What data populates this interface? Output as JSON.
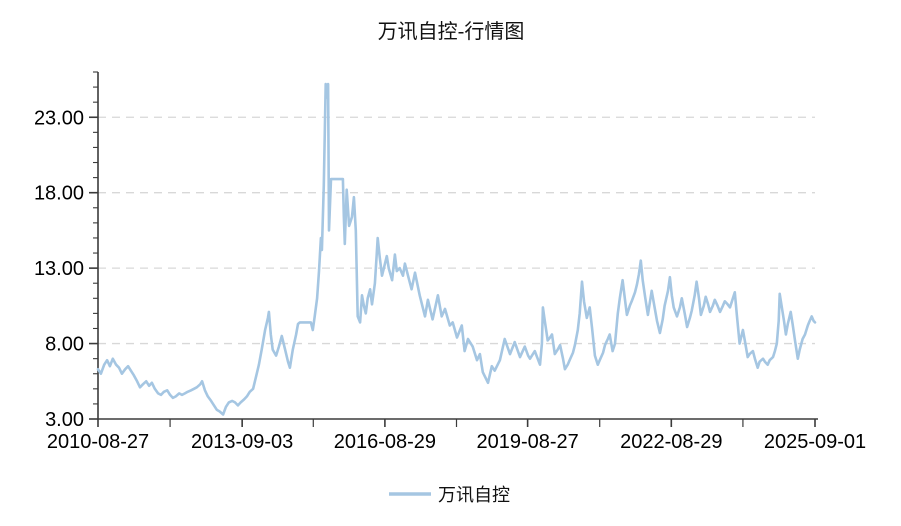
{
  "title": "万讯自控-行情图",
  "legend": {
    "label": "万讯自控"
  },
  "colors": {
    "series_line": "#A5C6E2",
    "axis": "#3b3b3b",
    "gridline": "#d8d8d8",
    "text": "#000000",
    "background": "#ffffff"
  },
  "chart_data": {
    "type": "line",
    "title": "万讯自控-行情图",
    "series_name": "万讯自控",
    "x_unit": "decimal_year",
    "xlim": [
      2010.65,
      2025.67
    ],
    "ylim": [
      3,
      26
    ],
    "grid": "dashed horizontal at y major ticks",
    "legend_position": "bottom-center",
    "y_ticks": [
      {
        "value": 3,
        "label": "3.00"
      },
      {
        "value": 8,
        "label": "8.00"
      },
      {
        "value": 13,
        "label": "13.00"
      },
      {
        "value": 18,
        "label": "18.00"
      },
      {
        "value": 23,
        "label": "23.00"
      }
    ],
    "y_minor_tick_step": 1,
    "gridline_values": [
      8,
      13,
      18,
      23
    ],
    "x_ticks": [
      {
        "year": 2010.65,
        "label": "2010-08-27"
      },
      {
        "year": 2013.67,
        "label": "2013-09-03"
      },
      {
        "year": 2016.66,
        "label": "2016-08-29"
      },
      {
        "year": 2019.65,
        "label": "2019-08-27"
      },
      {
        "year": 2022.66,
        "label": "2022-08-29"
      },
      {
        "year": 2025.67,
        "label": "2025-09-01"
      }
    ],
    "x_minor_ticks": [
      2012.16,
      2015.16,
      2018.16,
      2021.16,
      2024.16
    ],
    "points": [
      [
        2010.65,
        6.3
      ],
      [
        2010.71,
        6.0
      ],
      [
        2010.78,
        6.6
      ],
      [
        2010.84,
        6.9
      ],
      [
        2010.9,
        6.5
      ],
      [
        2010.96,
        7.0
      ],
      [
        2011.03,
        6.6
      ],
      [
        2011.09,
        6.4
      ],
      [
        2011.15,
        6.0
      ],
      [
        2011.22,
        6.3
      ],
      [
        2011.28,
        6.5
      ],
      [
        2011.34,
        6.2
      ],
      [
        2011.4,
        5.9
      ],
      [
        2011.47,
        5.5
      ],
      [
        2011.53,
        5.1
      ],
      [
        2011.59,
        5.3
      ],
      [
        2011.66,
        5.5
      ],
      [
        2011.72,
        5.2
      ],
      [
        2011.78,
        5.4
      ],
      [
        2011.84,
        5.0
      ],
      [
        2011.91,
        4.7
      ],
      [
        2011.97,
        4.6
      ],
      [
        2012.03,
        4.8
      ],
      [
        2012.1,
        4.9
      ],
      [
        2012.16,
        4.6
      ],
      [
        2012.22,
        4.4
      ],
      [
        2012.28,
        4.5
      ],
      [
        2012.35,
        4.7
      ],
      [
        2012.41,
        4.6
      ],
      [
        2012.47,
        4.7
      ],
      [
        2012.53,
        4.8
      ],
      [
        2012.6,
        4.9
      ],
      [
        2012.66,
        5.0
      ],
      [
        2012.72,
        5.1
      ],
      [
        2012.79,
        5.3
      ],
      [
        2012.83,
        5.5
      ],
      [
        2012.89,
        4.9
      ],
      [
        2012.95,
        4.5
      ],
      [
        2013.02,
        4.2
      ],
      [
        2013.08,
        3.9
      ],
      [
        2013.14,
        3.6
      ],
      [
        2013.2,
        3.5
      ],
      [
        2013.27,
        3.3
      ],
      [
        2013.33,
        3.8
      ],
      [
        2013.39,
        4.1
      ],
      [
        2013.46,
        4.2
      ],
      [
        2013.52,
        4.1
      ],
      [
        2013.58,
        3.9
      ],
      [
        2013.64,
        4.1
      ],
      [
        2013.71,
        4.3
      ],
      [
        2013.77,
        4.5
      ],
      [
        2013.83,
        4.8
      ],
      [
        2013.9,
        5.0
      ],
      [
        2013.96,
        5.8
      ],
      [
        2014.02,
        6.6
      ],
      [
        2014.08,
        7.6
      ],
      [
        2014.15,
        8.9
      ],
      [
        2014.21,
        9.7
      ],
      [
        2014.23,
        10.1
      ],
      [
        2014.27,
        8.6
      ],
      [
        2014.31,
        7.6
      ],
      [
        2014.38,
        7.2
      ],
      [
        2014.44,
        7.8
      ],
      [
        2014.5,
        8.5
      ],
      [
        2014.57,
        7.6
      ],
      [
        2014.63,
        6.8
      ],
      [
        2014.67,
        6.4
      ],
      [
        2014.73,
        7.6
      ],
      [
        2014.8,
        8.6
      ],
      [
        2014.84,
        9.3
      ],
      [
        2014.88,
        9.4
      ],
      [
        2015.01,
        9.4
      ],
      [
        2015.11,
        9.4
      ],
      [
        2015.15,
        8.9
      ],
      [
        2015.19,
        9.8
      ],
      [
        2015.24,
        11.0
      ],
      [
        2015.28,
        12.8
      ],
      [
        2015.32,
        15.0
      ],
      [
        2015.34,
        14.2
      ],
      [
        2015.38,
        18.5
      ],
      [
        2015.42,
        25.2
      ],
      [
        2015.45,
        24.3
      ],
      [
        2015.47,
        25.2
      ],
      [
        2015.49,
        15.5
      ],
      [
        2015.53,
        18.9
      ],
      [
        2015.78,
        18.9
      ],
      [
        2015.8,
        16.5
      ],
      [
        2015.82,
        14.6
      ],
      [
        2015.86,
        18.2
      ],
      [
        2015.91,
        15.8
      ],
      [
        2015.97,
        16.4
      ],
      [
        2016.01,
        17.7
      ],
      [
        2016.05,
        15.5
      ],
      [
        2016.09,
        9.8
      ],
      [
        2016.14,
        9.4
      ],
      [
        2016.18,
        11.2
      ],
      [
        2016.22,
        10.5
      ],
      [
        2016.26,
        10.0
      ],
      [
        2016.3,
        11.0
      ],
      [
        2016.35,
        11.6
      ],
      [
        2016.39,
        10.6
      ],
      [
        2016.45,
        12.0
      ],
      [
        2016.49,
        14.0
      ],
      [
        2016.51,
        15.0
      ],
      [
        2016.55,
        13.8
      ],
      [
        2016.6,
        12.5
      ],
      [
        2016.64,
        13.0
      ],
      [
        2016.7,
        13.8
      ],
      [
        2016.74,
        13.0
      ],
      [
        2016.81,
        12.2
      ],
      [
        2016.87,
        13.9
      ],
      [
        2016.91,
        12.8
      ],
      [
        2016.97,
        13.0
      ],
      [
        2017.04,
        12.5
      ],
      [
        2017.08,
        13.3
      ],
      [
        2017.16,
        12.3
      ],
      [
        2017.22,
        11.6
      ],
      [
        2017.29,
        12.7
      ],
      [
        2017.39,
        11.2
      ],
      [
        2017.5,
        9.8
      ],
      [
        2017.56,
        10.9
      ],
      [
        2017.66,
        9.6
      ],
      [
        2017.77,
        11.2
      ],
      [
        2017.85,
        9.8
      ],
      [
        2017.92,
        10.3
      ],
      [
        2018.02,
        9.2
      ],
      [
        2018.08,
        9.4
      ],
      [
        2018.17,
        8.4
      ],
      [
        2018.27,
        9.2
      ],
      [
        2018.33,
        7.5
      ],
      [
        2018.4,
        8.3
      ],
      [
        2018.5,
        7.8
      ],
      [
        2018.59,
        6.9
      ],
      [
        2018.65,
        7.3
      ],
      [
        2018.71,
        6.1
      ],
      [
        2018.82,
        5.4
      ],
      [
        2018.9,
        6.5
      ],
      [
        2018.96,
        6.2
      ],
      [
        2019.07,
        6.9
      ],
      [
        2019.17,
        8.3
      ],
      [
        2019.28,
        7.3
      ],
      [
        2019.38,
        8.1
      ],
      [
        2019.49,
        7.1
      ],
      [
        2019.59,
        7.8
      ],
      [
        2019.66,
        7.2
      ],
      [
        2019.7,
        7.0
      ],
      [
        2019.76,
        7.3
      ],
      [
        2019.8,
        7.5
      ],
      [
        2019.86,
        7.0
      ],
      [
        2019.91,
        6.6
      ],
      [
        2019.95,
        8.0
      ],
      [
        2019.97,
        10.4
      ],
      [
        2020.01,
        9.5
      ],
      [
        2020.07,
        8.2
      ],
      [
        2020.12,
        8.4
      ],
      [
        2020.16,
        8.6
      ],
      [
        2020.22,
        7.3
      ],
      [
        2020.28,
        7.6
      ],
      [
        2020.33,
        7.9
      ],
      [
        2020.39,
        7.0
      ],
      [
        2020.43,
        6.3
      ],
      [
        2020.49,
        6.6
      ],
      [
        2020.53,
        6.9
      ],
      [
        2020.6,
        7.4
      ],
      [
        2020.64,
        7.9
      ],
      [
        2020.7,
        8.9
      ],
      [
        2020.74,
        10.0
      ],
      [
        2020.79,
        12.1
      ],
      [
        2020.83,
        10.8
      ],
      [
        2020.89,
        9.7
      ],
      [
        2020.95,
        10.4
      ],
      [
        2021.0,
        9.0
      ],
      [
        2021.06,
        7.2
      ],
      [
        2021.12,
        6.6
      ],
      [
        2021.16,
        6.9
      ],
      [
        2021.23,
        7.4
      ],
      [
        2021.27,
        7.9
      ],
      [
        2021.33,
        8.3
      ],
      [
        2021.37,
        8.6
      ],
      [
        2021.43,
        7.5
      ],
      [
        2021.48,
        8.0
      ],
      [
        2021.54,
        10.0
      ],
      [
        2021.58,
        11.0
      ],
      [
        2021.64,
        12.2
      ],
      [
        2021.69,
        10.9
      ],
      [
        2021.73,
        9.9
      ],
      [
        2021.79,
        10.5
      ],
      [
        2021.83,
        10.8
      ],
      [
        2021.9,
        11.4
      ],
      [
        2021.94,
        11.9
      ],
      [
        2021.98,
        12.6
      ],
      [
        2022.02,
        13.5
      ],
      [
        2022.06,
        12.2
      ],
      [
        2022.11,
        11.1
      ],
      [
        2022.17,
        9.9
      ],
      [
        2022.21,
        10.7
      ],
      [
        2022.25,
        11.5
      ],
      [
        2022.31,
        10.4
      ],
      [
        2022.36,
        9.5
      ],
      [
        2022.42,
        8.7
      ],
      [
        2022.48,
        9.6
      ],
      [
        2022.52,
        10.5
      ],
      [
        2022.59,
        11.5
      ],
      [
        2022.63,
        12.4
      ],
      [
        2022.67,
        11.2
      ],
      [
        2022.71,
        10.4
      ],
      [
        2022.78,
        9.8
      ],
      [
        2022.84,
        10.4
      ],
      [
        2022.88,
        11.0
      ],
      [
        2022.94,
        10.0
      ],
      [
        2022.99,
        9.1
      ],
      [
        2023.05,
        9.7
      ],
      [
        2023.09,
        10.2
      ],
      [
        2023.15,
        11.2
      ],
      [
        2023.19,
        12.1
      ],
      [
        2023.24,
        11.0
      ],
      [
        2023.28,
        9.9
      ],
      [
        2023.34,
        10.5
      ],
      [
        2023.38,
        11.1
      ],
      [
        2023.43,
        10.6
      ],
      [
        2023.47,
        10.1
      ],
      [
        2023.53,
        10.5
      ],
      [
        2023.57,
        10.9
      ],
      [
        2023.63,
        10.5
      ],
      [
        2023.68,
        10.1
      ],
      [
        2023.74,
        10.5
      ],
      [
        2023.78,
        10.8
      ],
      [
        2023.84,
        10.6
      ],
      [
        2023.89,
        10.4
      ],
      [
        2023.95,
        11.0
      ],
      [
        2023.99,
        11.4
      ],
      [
        2024.03,
        10.0
      ],
      [
        2024.09,
        8.0
      ],
      [
        2024.16,
        8.9
      ],
      [
        2024.2,
        8.2
      ],
      [
        2024.26,
        7.1
      ],
      [
        2024.3,
        7.3
      ],
      [
        2024.37,
        7.5
      ],
      [
        2024.41,
        7.0
      ],
      [
        2024.47,
        6.4
      ],
      [
        2024.51,
        6.8
      ],
      [
        2024.58,
        7.0
      ],
      [
        2024.62,
        6.8
      ],
      [
        2024.68,
        6.6
      ],
      [
        2024.72,
        6.9
      ],
      [
        2024.79,
        7.1
      ],
      [
        2024.83,
        7.5
      ],
      [
        2024.87,
        8.0
      ],
      [
        2024.91,
        9.5
      ],
      [
        2024.93,
        11.3
      ],
      [
        2024.97,
        10.5
      ],
      [
        2025.02,
        9.5
      ],
      [
        2025.06,
        8.6
      ],
      [
        2025.1,
        9.3
      ],
      [
        2025.16,
        10.1
      ],
      [
        2025.2,
        9.3
      ],
      [
        2025.25,
        8.2
      ],
      [
        2025.31,
        7.0
      ],
      [
        2025.35,
        7.6
      ],
      [
        2025.41,
        8.3
      ],
      [
        2025.46,
        8.6
      ],
      [
        2025.52,
        9.2
      ],
      [
        2025.56,
        9.5
      ],
      [
        2025.6,
        9.8
      ],
      [
        2025.64,
        9.5
      ],
      [
        2025.67,
        9.4
      ]
    ]
  }
}
